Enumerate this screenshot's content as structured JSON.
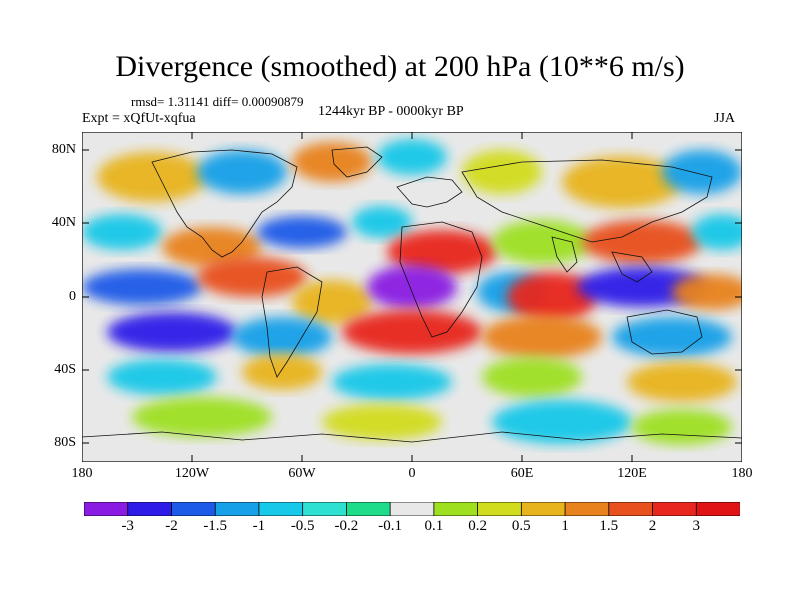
{
  "title": "Divergence (smoothed) at 200 hPa (10**6 m/s)",
  "stats": "rmsd= 1.31141 diff= 0.00090879",
  "experiment": "Expt = xQfUt-xqfua",
  "period": "1244kyr BP - 0000kyr BP",
  "season": "JJA",
  "lat_labels": [
    "80N",
    "40N",
    "0",
    "40S",
    "80S"
  ],
  "lon_labels": [
    "180",
    "120W",
    "60W",
    "0",
    "60E",
    "120E",
    "180"
  ],
  "colorbar": {
    "labels": [
      "-3",
      "-2",
      "-1.5",
      "-1",
      "-0.5",
      "-0.2",
      "-0.1",
      "0.1",
      "0.2",
      "0.5",
      "1",
      "1.5",
      "2",
      "3"
    ],
    "colors": [
      "#8a1be2",
      "#2e1be8",
      "#1e5ae8",
      "#16a0e8",
      "#18c8e8",
      "#2ee0d0",
      "#1edc8a",
      "#e8e8e8",
      "#9ee020",
      "#d2dc1e",
      "#e8b41e",
      "#e8821e",
      "#e8501e",
      "#e8281e",
      "#e01414"
    ]
  },
  "colors": {
    "neutral": "#e8e8e8",
    "coast": "#111111"
  }
}
